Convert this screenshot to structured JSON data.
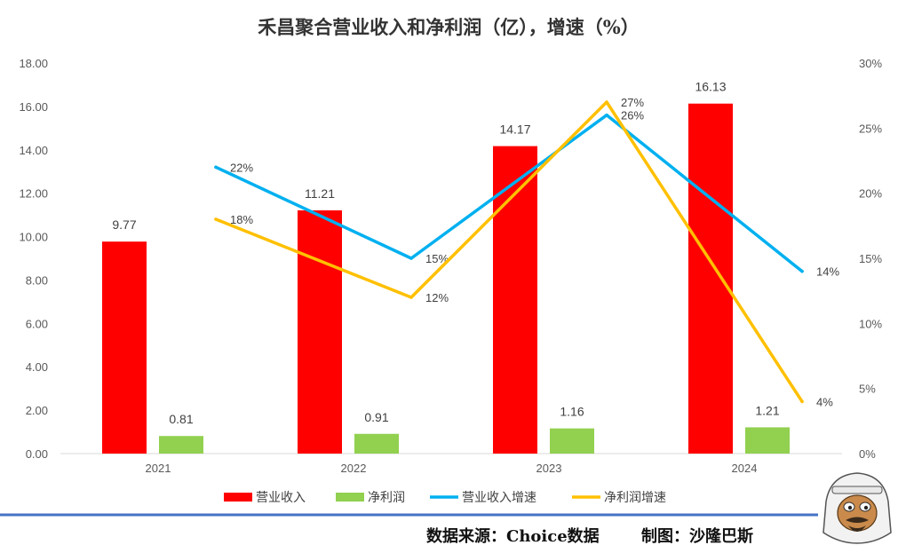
{
  "chart_data": {
    "type": "bar",
    "title": "禾昌聚合营业收入和净利润（亿），增速（%）",
    "categories": [
      "2021",
      "2022",
      "2023",
      "2024"
    ],
    "bar_series": [
      {
        "name": "营业收入",
        "values": [
          9.77,
          11.21,
          14.17,
          16.13
        ],
        "labels": [
          "9.77",
          "11.21",
          "14.17",
          "16.13"
        ],
        "color": "#ff0000"
      },
      {
        "name": "净利润",
        "values": [
          0.81,
          0.91,
          1.16,
          1.21
        ],
        "labels": [
          "0.81",
          "0.91",
          "1.16",
          "1.21"
        ],
        "color": "#92d050"
      }
    ],
    "line_series": [
      {
        "name": "营业收入增速",
        "values": [
          22,
          15,
          26,
          14
        ],
        "labels": [
          "22%",
          "15%",
          "26%",
          "14%"
        ],
        "color": "#00b0f0"
      },
      {
        "name": "净利润增速",
        "values": [
          18,
          12,
          27,
          4
        ],
        "labels": [
          "18%",
          "12%",
          "27%",
          "4%"
        ],
        "color": "#ffc000"
      }
    ],
    "y_left": {
      "min": 0,
      "max": 18,
      "ticks": [
        "0.00",
        "2.00",
        "4.00",
        "6.00",
        "8.00",
        "10.00",
        "12.00",
        "14.00",
        "16.00",
        "18.00"
      ]
    },
    "y_right": {
      "min": 0,
      "max": 30,
      "ticks": [
        "0%",
        "5%",
        "10%",
        "15%",
        "20%",
        "25%",
        "30%"
      ]
    },
    "grid": false,
    "legend": "bottom"
  },
  "footer": {
    "source": "数据来源：Choice数据",
    "author": "制图：沙隆巴斯"
  }
}
